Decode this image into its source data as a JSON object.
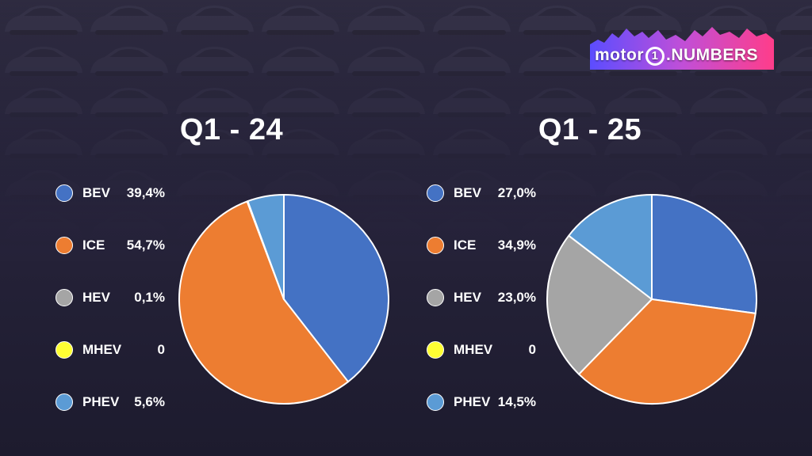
{
  "brand": {
    "logo_text_left": "motor",
    "logo_text_number": "1",
    "logo_text_right": ".NUMBERS"
  },
  "colors": {
    "BEV": "#4472c4",
    "ICE": "#ed7d31",
    "HEV": "#a5a5a5",
    "MHEV": "#ffff33",
    "PHEV": "#5b9bd5"
  },
  "chart_data": [
    {
      "type": "pie",
      "title": "Q1 - 24",
      "categories": [
        "BEV",
        "ICE",
        "HEV",
        "MHEV",
        "PHEV"
      ],
      "values": [
        39.4,
        54.7,
        0.1,
        0,
        5.6
      ],
      "labels": [
        "39,4%",
        "54,7%",
        "0,1%",
        "0",
        "5,6%"
      ],
      "legend": "left"
    },
    {
      "type": "pie",
      "title": "Q1 - 25",
      "categories": [
        "BEV",
        "ICE",
        "HEV",
        "MHEV",
        "PHEV"
      ],
      "values": [
        27.0,
        34.9,
        23.0,
        0,
        14.5
      ],
      "labels": [
        "27,0%",
        "34,9%",
        "23,0%",
        "0",
        "14,5%"
      ],
      "legend": "left"
    }
  ]
}
